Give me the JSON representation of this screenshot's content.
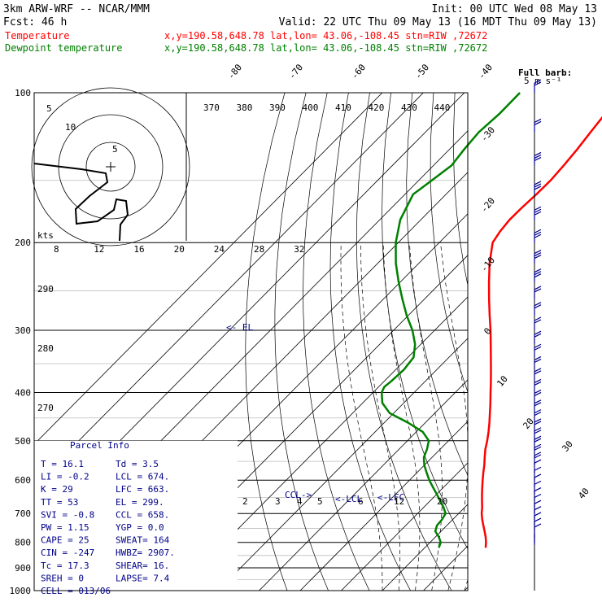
{
  "header": {
    "model": "3km ARW-WRF -- NCAR/MMM",
    "init": "Init: 00 UTC Wed 08 May 13",
    "fcst": "Fcst:   46 h",
    "valid": "Valid: 22 UTC Thu 09 May 13 (16 MDT Thu 09 May 13)"
  },
  "legend": [
    {
      "name": "Temperature",
      "info": "x,y=190.58,648.78   lat,lon= 43.06,-108.45   stn=RIW ,72672",
      "color": "#ff0000"
    },
    {
      "name": "Dewpoint temperature",
      "info": "x,y=190.58,648.78   lat,lon= 43.06,-108.45   stn=RIW ,72672",
      "color": "#008000"
    }
  ],
  "wind_scale_label": "Full barb:\n5 m s⁻¹",
  "hodograph": {
    "units": "kts",
    "ring_labels": [
      "5",
      "10",
      "5"
    ]
  },
  "annotations": {
    "el": "<- EL",
    "ccl": "CCL->",
    "lcl": "<-LCL",
    "lfc": "<-LFC",
    "gradient_digits": [
      "2",
      "3",
      "4",
      "5",
      "6",
      "12",
      "20"
    ]
  },
  "parcel_info": {
    "title": "Parcel Info",
    "rows": [
      [
        "T   =    16.1",
        "Td  =    3.5"
      ],
      [
        "LI  =    -0.2",
        "LCL =   674."
      ],
      [
        "K   =     29",
        "LFC =   663."
      ],
      [
        "TT  =     53",
        "EL  =   299."
      ],
      [
        "SVI =    -0.8",
        "CCL =   658."
      ],
      [
        "PW  =   1.15",
        "YGP =    0.0"
      ],
      [
        "CAPE =    25",
        "SWEAT=   164"
      ],
      [
        "CIN =   -247",
        "HWBZ= 2907."
      ],
      [
        "Tc  =   17.3",
        "SHEAR=   16."
      ],
      [
        "SREH =     0",
        "LAPSE=   7.4"
      ],
      [
        "CELL = 013/06",
        ""
      ]
    ]
  },
  "chart_data": {
    "type": "line",
    "title": "",
    "y_axis": {
      "scale": "log-pressure",
      "unit": "hPa",
      "ticks": [
        100,
        200,
        300,
        400,
        500,
        600,
        700,
        800,
        900,
        1000
      ]
    },
    "isotherm_labels": [
      "-80",
      "-70",
      "-60",
      "-50",
      "-40",
      "-30",
      "-20",
      "-10",
      "0",
      "10",
      "20",
      "30",
      "40"
    ],
    "isotherm_values": [
      -80,
      -70,
      -60,
      -50,
      -40,
      -30,
      -20,
      -10,
      0,
      10,
      20,
      30,
      40
    ],
    "theta_labels": [
      "370",
      "380",
      "390",
      "400",
      "410",
      "420",
      "430",
      "440"
    ],
    "theta_labels_low": [
      "290",
      "280",
      "270"
    ],
    "hodo_speed_labels": [
      "8",
      "12",
      "16",
      "20",
      "24",
      "28",
      "32"
    ],
    "series": [
      {
        "name": "Temperature",
        "color": "#ff0000",
        "pressure": [
          820,
          800,
          780,
          760,
          740,
          720,
          700,
          680,
          660,
          640,
          620,
          600,
          580,
          560,
          540,
          520,
          500,
          480,
          460,
          440,
          420,
          400,
          380,
          360,
          340,
          320,
          300,
          280,
          260,
          240,
          220,
          200,
          190,
          180,
          170,
          160,
          150,
          140,
          130,
          120,
          110,
          100
        ],
        "values": [
          14.8,
          13.6,
          12.2,
          10.6,
          8.9,
          7.2,
          5.6,
          4.2,
          2.6,
          1.0,
          -0.6,
          -2.2,
          -3.8,
          -5.4,
          -7.2,
          -9.0,
          -10.6,
          -12.4,
          -14.4,
          -16.6,
          -18.9,
          -21.4,
          -24.0,
          -26.8,
          -29.8,
          -33.0,
          -36.4,
          -40.2,
          -44.2,
          -48.4,
          -52.8,
          -57.0,
          -57.9,
          -58.4,
          -58.3,
          -58.0,
          -57.9,
          -58.3,
          -58.9,
          -59.8,
          -60.7,
          -61.4
        ]
      },
      {
        "name": "Dewpoint temperature",
        "color": "#008000",
        "pressure": [
          820,
          800,
          780,
          760,
          740,
          720,
          700,
          680,
          660,
          640,
          620,
          600,
          580,
          560,
          540,
          520,
          500,
          480,
          460,
          440,
          420,
          400,
          390,
          380,
          360,
          340,
          320,
          300,
          280,
          260,
          240,
          220,
          200,
          180,
          160,
          150,
          140,
          130,
          120,
          110,
          100
        ],
        "values": [
          3.4,
          2.6,
          0.8,
          -1.4,
          -2.4,
          -2.6,
          -3.2,
          -5.2,
          -7.6,
          -10.0,
          -12.6,
          -15.2,
          -17.6,
          -20.0,
          -22.0,
          -23.2,
          -24.8,
          -28.4,
          -34.2,
          -41.0,
          -45.2,
          -47.9,
          -48.6,
          -48.3,
          -48.0,
          -48.6,
          -51.4,
          -55.4,
          -60.4,
          -65.3,
          -70.4,
          -75.6,
          -80.6,
          -85.0,
          -88.0,
          -86.8,
          -85.6,
          -86.4,
          -87.0,
          -86.4,
          -86.5
        ]
      }
    ],
    "hodograph_trace": {
      "u": [
        0,
        5,
        8,
        9,
        8,
        6,
        6,
        10,
        13,
        13,
        12,
        12
      ],
      "v": [
        -20,
        -19,
        -13,
        -9,
        -6,
        -4,
        -2,
        0,
        3,
        7,
        11,
        14
      ]
    },
    "winds": {
      "pressure": [
        100,
        120,
        140,
        160,
        180,
        200,
        220,
        240,
        260,
        280,
        300,
        320,
        340,
        360,
        380,
        400,
        420,
        440,
        460,
        480,
        500,
        520,
        540,
        560,
        580,
        600,
        620,
        640,
        660,
        680,
        700,
        720,
        740,
        760,
        780,
        800,
        810
      ],
      "speed_ms": [
        10,
        12,
        14,
        15,
        16,
        15,
        14,
        13,
        12,
        12,
        11,
        11,
        10,
        10,
        10,
        10,
        9,
        9,
        9,
        8,
        8,
        8,
        8,
        8,
        7,
        7,
        6,
        6,
        5,
        5,
        4,
        4,
        4,
        3,
        3,
        2,
        2
      ]
    }
  }
}
